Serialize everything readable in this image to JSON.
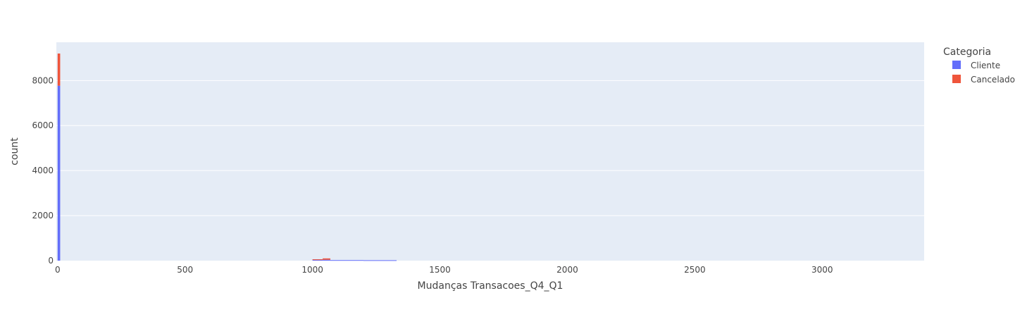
{
  "chart_data": {
    "type": "bar",
    "xlabel": "Mudanças Transacoes_Q4_Q1",
    "ylabel": "count",
    "xlim": [
      -5,
      3400
    ],
    "ylim": [
      0,
      9700
    ],
    "x_ticks": [
      0,
      500,
      1000,
      1500,
      2000,
      2500,
      3000
    ],
    "x_tick_labels": [
      "0",
      "500",
      "1000",
      "1500",
      "2000",
      "2500",
      "3000"
    ],
    "y_ticks": [
      0,
      2000,
      4000,
      6000,
      8000
    ],
    "y_tick_labels": [
      "0",
      "2000",
      "4000",
      "6000",
      "8000"
    ],
    "grid": true,
    "barmode": "stack",
    "legend": {
      "title": "Categoria",
      "placement": "top-right",
      "entries": [
        "Cliente",
        "Cancelado"
      ]
    },
    "series": [
      {
        "name": "Cliente",
        "color": "#636efa",
        "bins": [
          {
            "x0": 0,
            "x1": 10,
            "value": 7770
          },
          {
            "x0": 1000,
            "x1": 1040,
            "value": 50
          },
          {
            "x0": 1040,
            "x1": 1070,
            "value": 40
          },
          {
            "x0": 1070,
            "x1": 1200,
            "value": 25
          },
          {
            "x0": 1200,
            "x1": 1330,
            "value": 20
          }
        ]
      },
      {
        "name": "Cancelado",
        "color": "#ef553b",
        "bins": [
          {
            "x0": 0,
            "x1": 10,
            "value": 1430
          },
          {
            "x0": 1000,
            "x1": 1040,
            "value": 10
          },
          {
            "x0": 1040,
            "x1": 1070,
            "value": 60
          },
          {
            "x0": 1070,
            "x1": 1200,
            "value": 0
          },
          {
            "x0": 1200,
            "x1": 1330,
            "value": 0
          }
        ]
      }
    ]
  }
}
